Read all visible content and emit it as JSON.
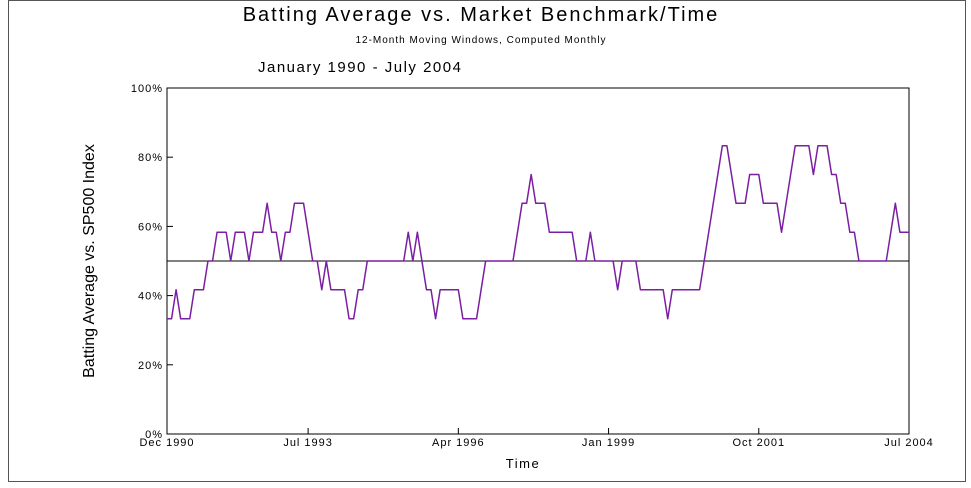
{
  "chart_data": {
    "type": "line",
    "title": "Batting Average vs. Market Benchmark/Time",
    "subtitle": "12-Month Moving Windows, Computed Monthly",
    "period": "January 1990 - July 2004",
    "x_label": "Time",
    "y_label": "Batting Average vs. SP500 Index",
    "categories": [
      "Dec 1990",
      null,
      null,
      null,
      null,
      null,
      null,
      null,
      null,
      null,
      null,
      null,
      null,
      null,
      null,
      null,
      null,
      null,
      null,
      null,
      null,
      null,
      null,
      null,
      null,
      null,
      null,
      null,
      null,
      null,
      null,
      "Jul 1993",
      null,
      null,
      null,
      null,
      null,
      null,
      null,
      null,
      null,
      null,
      null,
      null,
      null,
      null,
      null,
      null,
      null,
      null,
      null,
      null,
      null,
      null,
      null,
      null,
      null,
      null,
      null,
      null,
      null,
      null,
      null,
      null,
      "Apr 1996",
      null,
      null,
      null,
      null,
      null,
      null,
      null,
      null,
      null,
      null,
      null,
      null,
      null,
      null,
      null,
      null,
      null,
      null,
      null,
      null,
      null,
      null,
      null,
      null,
      null,
      null,
      null,
      null,
      null,
      null,
      null,
      null,
      "Jan 1999",
      null,
      null,
      null,
      null,
      null,
      null,
      null,
      null,
      null,
      null,
      null,
      null,
      null,
      null,
      null,
      null,
      null,
      null,
      null,
      null,
      null,
      null,
      null,
      null,
      null,
      null,
      null,
      null,
      null,
      null,
      null,
      null,
      "Oct 2001",
      null,
      null,
      null,
      null,
      null,
      null,
      null,
      null,
      null,
      null,
      null,
      null,
      null,
      null,
      null,
      null,
      null,
      null,
      null,
      null,
      null,
      null,
      null,
      null,
      null,
      null,
      null,
      null,
      null,
      null,
      null,
      null,
      "Jul 2004"
    ],
    "series": [
      {
        "name": "Batting Average",
        "color": "#7b1fa2",
        "values": [
          33.3,
          33.3,
          41.7,
          33.3,
          33.3,
          33.3,
          41.7,
          41.7,
          41.7,
          50,
          50,
          58.3,
          58.3,
          58.3,
          50,
          58.3,
          58.3,
          58.3,
          50,
          58.3,
          58.3,
          58.3,
          66.7,
          58.3,
          58.3,
          50,
          58.3,
          58.3,
          66.7,
          66.7,
          66.7,
          58.3,
          50,
          50,
          41.7,
          50,
          41.7,
          41.7,
          41.7,
          41.7,
          33.3,
          33.3,
          41.7,
          41.7,
          50,
          50,
          50,
          50,
          50,
          50,
          50,
          50,
          50,
          58.3,
          50,
          58.3,
          50,
          41.7,
          41.7,
          33.3,
          41.7,
          41.7,
          41.7,
          41.7,
          41.7,
          33.3,
          33.3,
          33.3,
          33.3,
          41.7,
          50,
          50,
          50,
          50,
          50,
          50,
          50,
          58.3,
          66.7,
          66.7,
          75,
          66.7,
          66.7,
          66.7,
          58.3,
          58.3,
          58.3,
          58.3,
          58.3,
          58.3,
          50,
          50,
          50,
          58.3,
          50,
          50,
          50,
          50,
          50,
          41.7,
          50,
          50,
          50,
          50,
          41.7,
          41.7,
          41.7,
          41.7,
          41.7,
          41.7,
          33.3,
          41.7,
          41.7,
          41.7,
          41.7,
          41.7,
          41.7,
          41.7,
          50,
          58.3,
          66.7,
          75,
          83.3,
          83.3,
          75,
          66.7,
          66.7,
          66.7,
          75,
          75,
          75,
          66.7,
          66.7,
          66.7,
          66.7,
          58.3,
          66.7,
          75,
          83.3,
          83.3,
          83.3,
          83.3,
          75,
          83.3,
          83.3,
          83.3,
          75,
          75,
          66.7,
          66.7,
          58.3,
          58.3,
          50,
          50,
          50,
          50,
          50,
          50,
          50,
          58.3,
          66.7,
          58.3,
          58.3,
          58.3
        ]
      }
    ],
    "reference_line": 50,
    "ylim": [
      0,
      100
    ],
    "yticks": [
      {
        "value": 0,
        "label": "0%"
      },
      {
        "value": 20,
        "label": "20%"
      },
      {
        "value": 40,
        "label": "40%"
      },
      {
        "value": 60,
        "label": "60%"
      },
      {
        "value": 80,
        "label": "80%"
      },
      {
        "value": 100,
        "label": "100%"
      }
    ],
    "grid": false
  }
}
